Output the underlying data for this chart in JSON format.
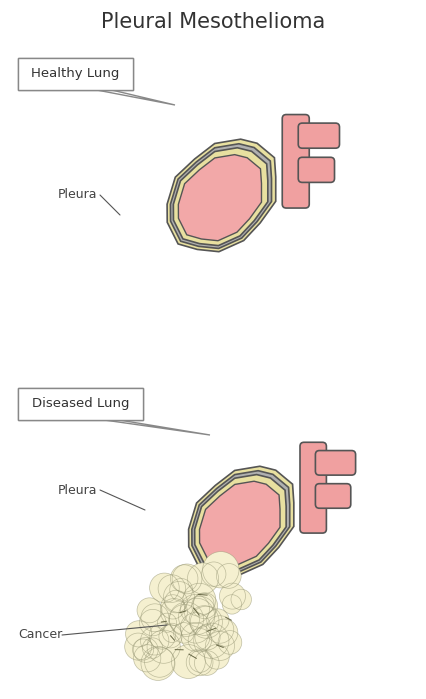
{
  "title": "Pleural Mesothelioma",
  "title_fontsize": 15,
  "title_color": "#333333",
  "bg_color": "#ffffff",
  "lung_pink": "#f2a8a8",
  "lung_pink_light": "#f8d0d0",
  "lung_pink_gradient_top": "#f0b0b0",
  "yellow_outer": "#e8e0a0",
  "gray_layer": "#b0b0b0",
  "yellow_inner": "#e8e0a0",
  "outline_color": "#555555",
  "bronchi_color": "#f0a0a0",
  "bronchi_outline": "#555555",
  "cancer_color": "#f5f0d0",
  "cancer_outline": "#999977",
  "label_fontsize": 9,
  "label_color": "#444444",
  "box_label1": "Healthy Lung",
  "box_label2": "Diseased Lung",
  "pleura_label": "Pleura",
  "cancer_label": "Cancer",
  "arrow_color": "#555555"
}
